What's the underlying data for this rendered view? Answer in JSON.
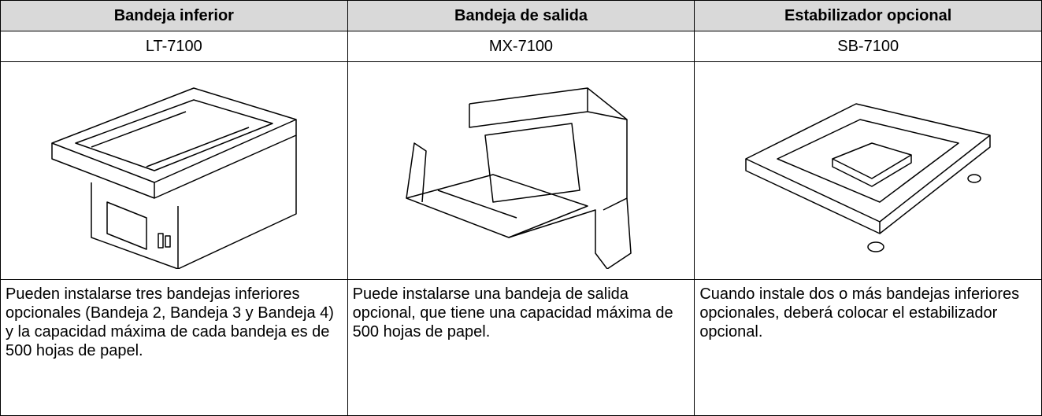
{
  "table": {
    "header": [
      "Bandeja inferior",
      "Bandeja de salida",
      "Estabilizador opcional"
    ],
    "models": [
      "LT-7100",
      "MX-7100",
      "SB-7100"
    ],
    "descriptions": [
      "Pueden instalarse tres bandejas inferiores opcionales (Bandeja 2, Bandeja 3 y Bandeja 4) y la capacidad máxima de cada bandeja es de 500 hojas de papel.",
      "Puede instalarse una bandeja de salida opcional, que tiene una capacidad máxima de 500 hojas de papel.",
      "Cuando instale dos o más bandejas inferiores opcionales, deberá colocar el estabilizador opcional."
    ]
  }
}
